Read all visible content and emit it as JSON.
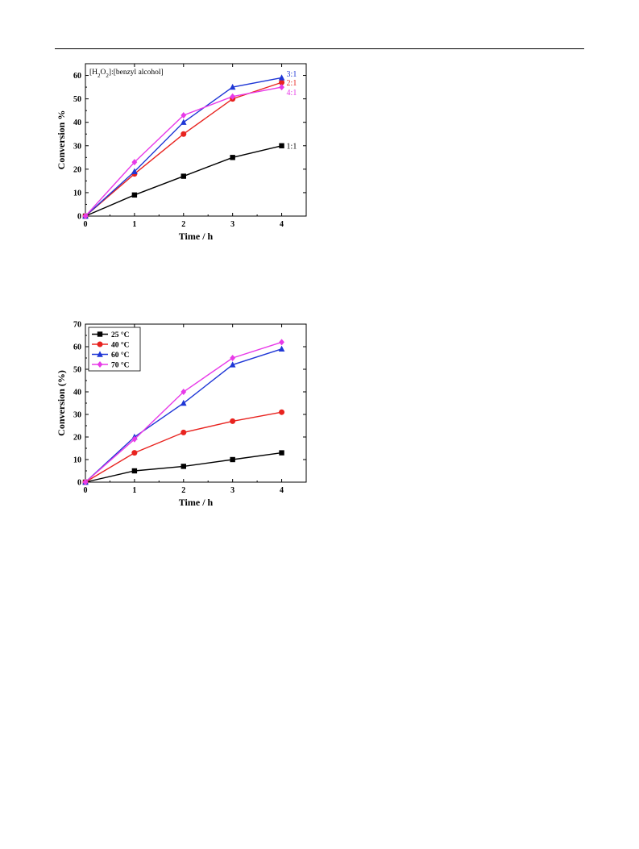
{
  "chart_data": [
    {
      "type": "line",
      "xlabel": "Time / h",
      "ylabel": "Conversion %",
      "xlim": [
        0,
        4.5
      ],
      "ylim": [
        0,
        65
      ],
      "xticks": [
        0,
        1,
        2,
        3,
        4
      ],
      "yticks": [
        0,
        10,
        20,
        30,
        40,
        50,
        60
      ],
      "annotation": {
        "prefix": "[H",
        "sub1": "2",
        "mid": "O",
        "sub2": "2",
        "suffix": "]:[benzyl alcohol]"
      },
      "x": [
        0,
        1,
        2,
        3,
        4
      ],
      "series": [
        {
          "name": "1:1",
          "values": [
            0,
            9,
            17,
            25,
            30
          ],
          "color": "#000000",
          "marker": "square"
        },
        {
          "name": "2:1",
          "values": [
            0,
            18,
            35,
            50,
            57
          ],
          "color": "#e8231f",
          "marker": "circle"
        },
        {
          "name": "3:1",
          "values": [
            0,
            19,
            40,
            55,
            59
          ],
          "color": "#1f37d6",
          "marker": "triangle"
        },
        {
          "name": "4:1",
          "values": [
            0,
            23,
            43,
            51,
            55
          ],
          "color": "#e83ae8",
          "marker": "diamond"
        }
      ],
      "legend": "end-of-line labels"
    },
    {
      "type": "line",
      "xlabel": "Time / h",
      "ylabel": "Conversion (%)",
      "xlim": [
        0,
        4.5
      ],
      "ylim": [
        0,
        70
      ],
      "xticks": [
        0,
        1,
        2,
        3,
        4
      ],
      "yticks": [
        0,
        10,
        20,
        30,
        40,
        50,
        60,
        70
      ],
      "x": [
        0,
        1,
        2,
        3,
        4
      ],
      "series": [
        {
          "name": "25 °C",
          "values": [
            0,
            5,
            7,
            10,
            13
          ],
          "color": "#000000",
          "marker": "square"
        },
        {
          "name": "40 °C",
          "values": [
            0,
            13,
            22,
            27,
            31
          ],
          "color": "#e8231f",
          "marker": "circle"
        },
        {
          "name": "60 °C",
          "values": [
            0,
            20,
            35,
            52,
            59
          ],
          "color": "#1f37d6",
          "marker": "triangle"
        },
        {
          "name": "70 °C",
          "values": [
            0,
            19,
            40,
            55,
            62
          ],
          "color": "#e83ae8",
          "marker": "diamond"
        }
      ],
      "legend": "top-left"
    }
  ]
}
